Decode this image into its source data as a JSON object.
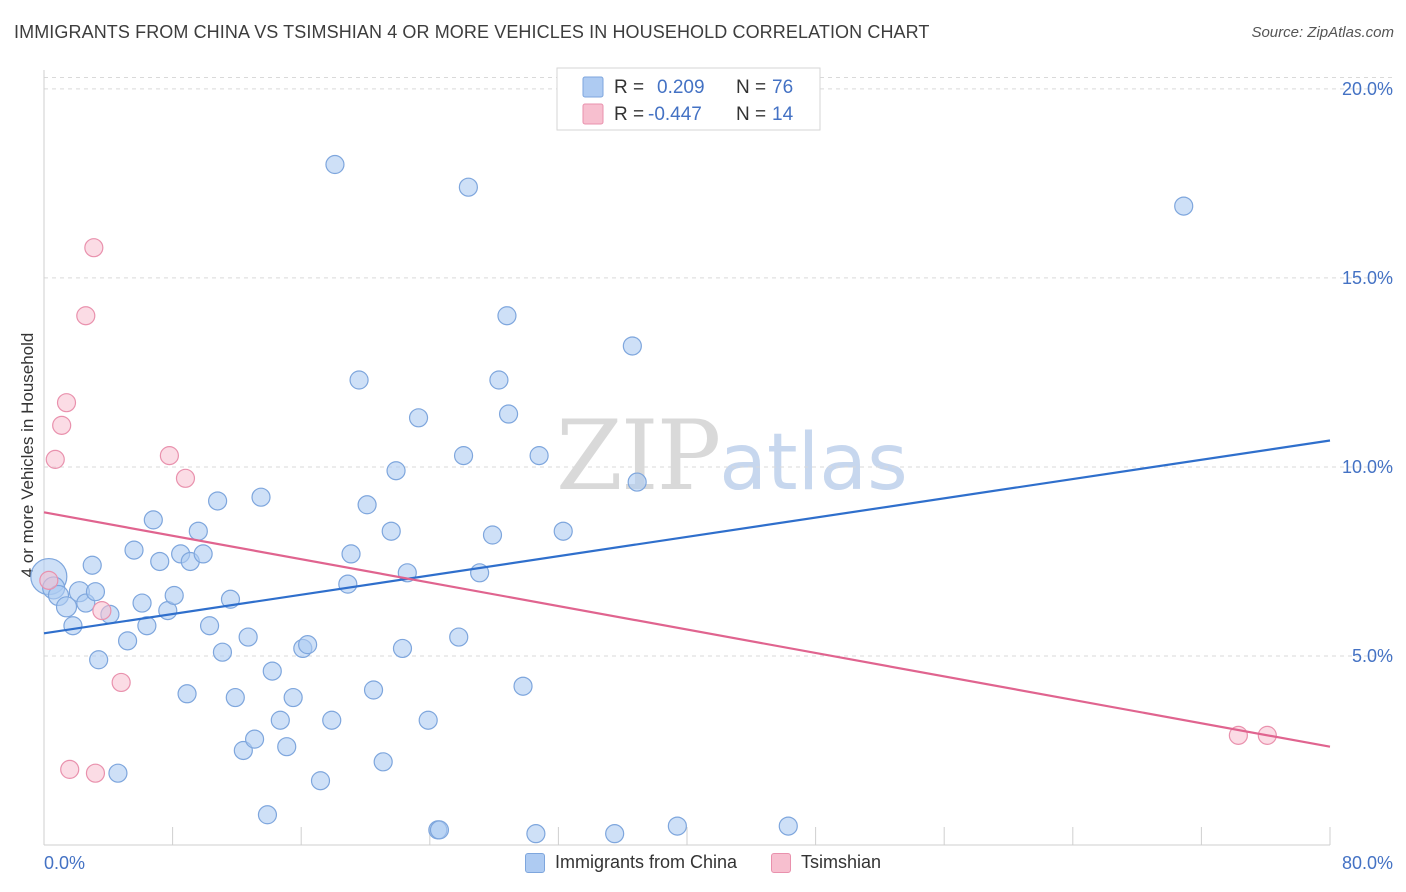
{
  "header": {
    "title": "IMMIGRANTS FROM CHINA VS TSIMSHIAN 4 OR MORE VEHICLES IN HOUSEHOLD CORRELATION CHART",
    "source": "Source: ZipAtlas.com"
  },
  "watermark": {
    "zip": "ZIP",
    "atlas": "atlas"
  },
  "legend": {
    "rows": [
      {
        "r_label": "R =",
        "r_value": "0.209",
        "n_label": "N =",
        "n_value": "76"
      },
      {
        "r_label": "R =",
        "r_value": "-0.447",
        "n_label": "N =",
        "n_value": "14"
      }
    ]
  },
  "bottom_legend": {
    "china": "Immigrants from China",
    "tsimshian": "Tsimshian"
  },
  "colors": {
    "china_fill": "#aecbf2",
    "china_stroke": "#7ea6dd",
    "china_line": "#2f6fcc",
    "tsimshian_fill": "#f7bfcf",
    "tsimshian_stroke": "#e991ad",
    "tsimshian_line": "#e0648f",
    "tick_text": "#4472c4",
    "grid": "#d9d9d9"
  },
  "chart_data": {
    "type": "scatter",
    "title": "IMMIGRANTS FROM CHINA VS TSIMSHIAN 4 OR MORE VEHICLES IN HOUSEHOLD CORRELATION CHART",
    "xlabel": "",
    "ylabel": "4 or more Vehicles in Household",
    "xlim": [
      0,
      80
    ],
    "ylim": [
      0,
      20.5
    ],
    "x_tick_labels": [
      "0.0%",
      "80.0%"
    ],
    "y_ticks": [
      5,
      10,
      15,
      20
    ],
    "y_tick_labels": [
      "5.0%",
      "10.0%",
      "15.0%",
      "20.0%"
    ],
    "grid": "horizontal dashed",
    "series": [
      {
        "name": "Immigrants from China",
        "R": 0.209,
        "N": 76,
        "trend": {
          "x": [
            0,
            80
          ],
          "y": [
            5.6,
            10.7
          ]
        },
        "points": [
          [
            0.3,
            7.1,
            18
          ],
          [
            0.6,
            6.8,
            11
          ],
          [
            0.9,
            6.6,
            10
          ],
          [
            1.4,
            6.3,
            10
          ],
          [
            1.8,
            5.8,
            9
          ],
          [
            2.2,
            6.7,
            10
          ],
          [
            2.6,
            6.4,
            9
          ],
          [
            3.0,
            7.4,
            9
          ],
          [
            3.2,
            6.7,
            9
          ],
          [
            4.1,
            6.1,
            9
          ],
          [
            3.4,
            4.9,
            9
          ],
          [
            4.6,
            1.9,
            9
          ],
          [
            5.2,
            5.4,
            9
          ],
          [
            5.6,
            7.8,
            9
          ],
          [
            6.1,
            6.4,
            9
          ],
          [
            6.4,
            5.8,
            9
          ],
          [
            6.8,
            8.6,
            9
          ],
          [
            7.2,
            7.5,
            9
          ],
          [
            7.7,
            6.2,
            9
          ],
          [
            8.1,
            6.6,
            9
          ],
          [
            8.5,
            7.7,
            9
          ],
          [
            8.9,
            4.0,
            9
          ],
          [
            9.1,
            7.5,
            9
          ],
          [
            9.6,
            8.3,
            9
          ],
          [
            9.9,
            7.7,
            9
          ],
          [
            10.3,
            5.8,
            9
          ],
          [
            10.8,
            9.1,
            9
          ],
          [
            11.1,
            5.1,
            9
          ],
          [
            11.6,
            6.5,
            9
          ],
          [
            11.9,
            3.9,
            9
          ],
          [
            12.4,
            2.5,
            9
          ],
          [
            12.7,
            5.5,
            9
          ],
          [
            13.1,
            2.8,
            9
          ],
          [
            13.5,
            9.2,
            9
          ],
          [
            13.9,
            0.8,
            9
          ],
          [
            14.2,
            4.6,
            9
          ],
          [
            14.7,
            3.3,
            9
          ],
          [
            15.1,
            2.6,
            9
          ],
          [
            15.5,
            3.9,
            9
          ],
          [
            16.1,
            5.2,
            9
          ],
          [
            16.4,
            5.3,
            9
          ],
          [
            17.2,
            1.7,
            9
          ],
          [
            17.9,
            3.3,
            9
          ],
          [
            18.1,
            18.0,
            9
          ],
          [
            18.9,
            6.9,
            9
          ],
          [
            19.1,
            7.7,
            9
          ],
          [
            19.6,
            12.3,
            9
          ],
          [
            20.1,
            9.0,
            9
          ],
          [
            20.5,
            4.1,
            9
          ],
          [
            21.6,
            8.3,
            9
          ],
          [
            21.9,
            9.9,
            9
          ],
          [
            21.1,
            2.2,
            9
          ],
          [
            22.3,
            5.2,
            9
          ],
          [
            22.6,
            7.2,
            9
          ],
          [
            23.3,
            11.3,
            9
          ],
          [
            23.9,
            3.3,
            9
          ],
          [
            24.5,
            0.4,
            9
          ],
          [
            25.8,
            5.5,
            9
          ],
          [
            26.1,
            10.3,
            9
          ],
          [
            26.4,
            17.4,
            9
          ],
          [
            27.1,
            7.2,
            9
          ],
          [
            27.9,
            8.2,
            9
          ],
          [
            28.3,
            12.3,
            9
          ],
          [
            28.8,
            14.0,
            9
          ],
          [
            28.9,
            11.4,
            9
          ],
          [
            29.8,
            4.2,
            9
          ],
          [
            30.6,
            0.3,
            9
          ],
          [
            30.8,
            10.3,
            9
          ],
          [
            32.3,
            8.3,
            9
          ],
          [
            35.5,
            0.3,
            9
          ],
          [
            36.6,
            13.2,
            9
          ],
          [
            36.9,
            9.6,
            9
          ],
          [
            39.4,
            0.5,
            9
          ],
          [
            46.3,
            0.5,
            9
          ],
          [
            70.9,
            16.9,
            9
          ],
          [
            24.6,
            0.4,
            9
          ]
        ]
      },
      {
        "name": "Tsimshian",
        "R": -0.447,
        "N": 14,
        "trend": {
          "x": [
            0,
            80
          ],
          "y": [
            8.8,
            2.6
          ]
        },
        "points": [
          [
            0.3,
            7.0,
            9
          ],
          [
            0.7,
            10.2,
            9
          ],
          [
            1.1,
            11.1,
            9
          ],
          [
            1.4,
            11.7,
            9
          ],
          [
            1.6,
            2.0,
            9
          ],
          [
            2.6,
            14.0,
            9
          ],
          [
            3.1,
            15.8,
            9
          ],
          [
            3.2,
            1.9,
            9
          ],
          [
            3.6,
            6.2,
            9
          ],
          [
            4.8,
            4.3,
            9
          ],
          [
            7.8,
            10.3,
            9
          ],
          [
            8.8,
            9.7,
            9
          ],
          [
            74.3,
            2.9,
            9
          ],
          [
            76.1,
            2.9,
            9
          ]
        ]
      }
    ]
  }
}
